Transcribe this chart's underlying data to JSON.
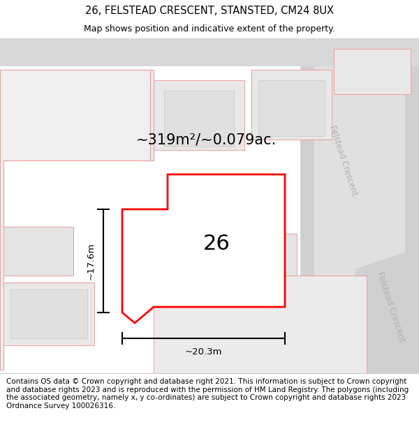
{
  "title": "26, FELSTEAD CRESCENT, STANSTED, CM24 8UX",
  "subtitle": "Map shows position and indicative extent of the property.",
  "footer": "Contains OS data © Crown copyright and database right 2021. This information is subject to Crown copyright and database rights 2023 and is reproduced with the permission of HM Land Registry. The polygons (including the associated geometry, namely x, y co-ordinates) are subject to Crown copyright and database rights 2023 Ordnance Survey 100026316.",
  "area_label": "~319m²/~0.079ac.",
  "width_label": "~20.3m",
  "height_label": "~17.6m",
  "plot_number": "26",
  "bg_color": "#f0f0f0",
  "road_band_color": "#d8d8d8",
  "block_fill": "#e4e4e4",
  "block_fill_light": "#ebebeb",
  "block_stroke_red": "#e8a0a0",
  "block_stroke_gray": "#c8c8c8",
  "highlight_fill": "white",
  "highlight_stroke": "red",
  "bldg_fill": "#d8d8d8",
  "road_label_color": "#b0b0b0",
  "title_fontsize": 10.5,
  "subtitle_fontsize": 9,
  "footer_fontsize": 7.5,
  "area_label_fontsize": 15,
  "plot_num_fontsize": 22,
  "dim_fontsize": 9.5
}
